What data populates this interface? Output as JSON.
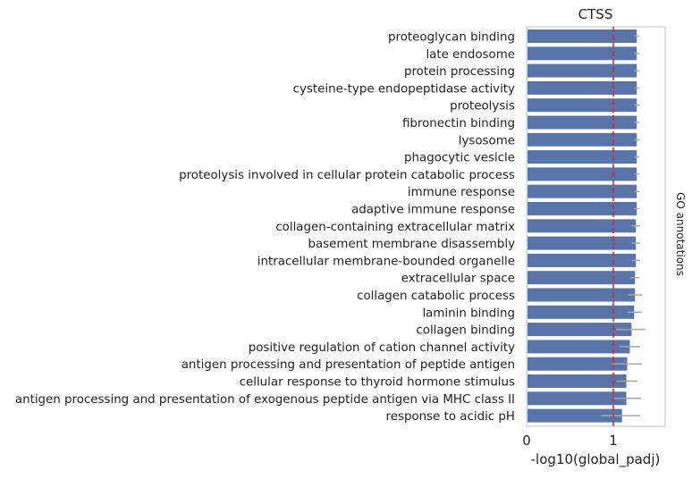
{
  "chart_data": {
    "type": "bar",
    "orientation": "horizontal",
    "title": "CTSS",
    "xlabel": "-log10(global_padj)",
    "ylabel": "GO annotations",
    "xlim": [
      0,
      1.6
    ],
    "xticks": [
      "0",
      "1"
    ],
    "grid": false,
    "legend": "none",
    "reference_line": {
      "x": 1,
      "color": "#d62728",
      "style": "dashed"
    },
    "colors": {
      "bar": "#5874a8",
      "errorbar": "#a6a6a6",
      "axis": "#cccccc",
      "text": "#222222"
    },
    "categories": [
      "proteoglycan binding",
      "late endosome",
      "protein processing",
      "cysteine-type endopeptidase activity",
      "proteolysis",
      "fibronectin binding",
      "lysosome",
      "phagocytic vesicle",
      "proteolysis involved in cellular protein catabolic process",
      "immune response",
      "adaptive immune response",
      "collagen-containing extracellular matrix",
      "basement membrane disassembly",
      "intracellular membrane-bounded organelle",
      "extracellular space",
      "collagen catabolic process",
      "laminin binding",
      "collagen binding",
      "positive regulation of cation channel activity",
      "antigen processing and presentation of peptide antigen",
      "cellular response to thyroid hormone stimulus",
      "antigen processing and presentation of exogenous peptide antigen via MHC class II",
      "response to acidic pH"
    ],
    "values": [
      1.27,
      1.27,
      1.27,
      1.27,
      1.27,
      1.27,
      1.27,
      1.27,
      1.27,
      1.27,
      1.27,
      1.26,
      1.26,
      1.26,
      1.25,
      1.25,
      1.24,
      1.21,
      1.19,
      1.16,
      1.15,
      1.15,
      1.1
    ],
    "errors": [
      [
        1.24,
        1.3
      ],
      [
        1.24,
        1.3
      ],
      [
        1.24,
        1.3
      ],
      [
        1.24,
        1.3
      ],
      [
        1.24,
        1.3
      ],
      [
        1.24,
        1.3
      ],
      [
        1.24,
        1.3
      ],
      [
        1.24,
        1.3
      ],
      [
        1.24,
        1.3
      ],
      [
        1.24,
        1.3
      ],
      [
        1.24,
        1.3
      ],
      [
        1.21,
        1.31
      ],
      [
        1.21,
        1.31
      ],
      [
        1.21,
        1.31
      ],
      [
        1.2,
        1.3
      ],
      [
        1.17,
        1.33
      ],
      [
        1.16,
        1.33
      ],
      [
        1.03,
        1.37
      ],
      [
        1.07,
        1.31
      ],
      [
        0.99,
        1.33
      ],
      [
        1.04,
        1.28
      ],
      [
        0.99,
        1.32
      ],
      [
        0.86,
        1.31
      ]
    ]
  }
}
